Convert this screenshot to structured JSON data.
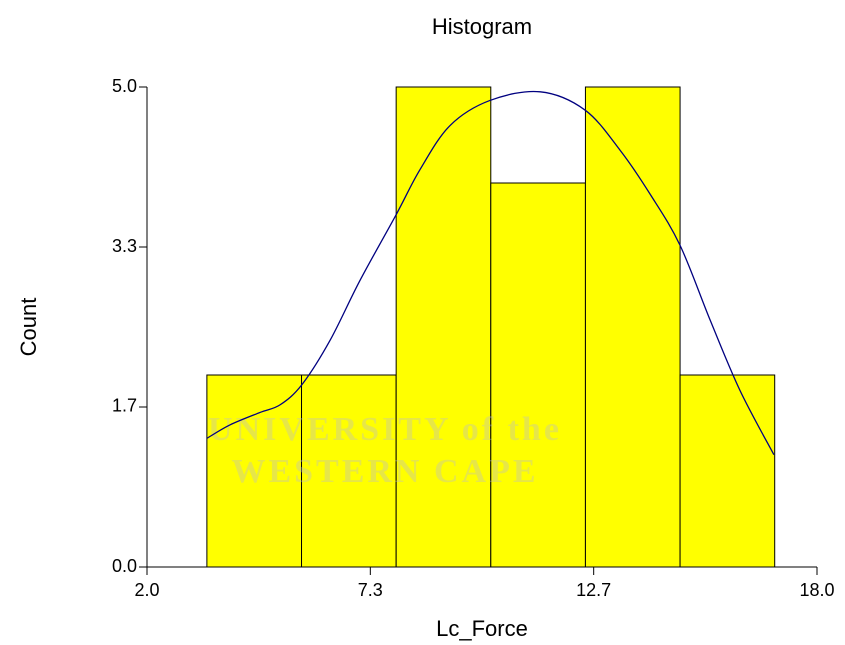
{
  "chart_data": {
    "type": "histogram",
    "title": "Histogram",
    "x_label": "Lc_Force",
    "y_label": "Count",
    "bins": [
      3.43,
      5.69,
      7.95,
      10.21,
      12.47,
      14.73,
      16.99
    ],
    "values": [
      2,
      2,
      5,
      4,
      5,
      2
    ],
    "color": "#ffff00",
    "edge_color": "#000000",
    "curve": {
      "color": "#000080",
      "x": [
        3.43,
        3.98,
        4.7,
        5.18,
        5.7,
        6.37,
        7.08,
        7.95,
        8.52,
        9.24,
        10.19,
        11.39,
        12.46,
        13.3,
        14.02,
        14.73,
        15.45,
        16.16,
        16.97
      ],
      "y": [
        1.34,
        1.48,
        1.61,
        1.69,
        1.9,
        2.36,
        2.98,
        3.67,
        4.14,
        4.6,
        4.86,
        4.95,
        4.76,
        4.34,
        3.88,
        3.35,
        2.57,
        1.84,
        1.17
      ]
    },
    "xlim": [
      2.0,
      18.0
    ],
    "xticks": [
      {
        "value": 2,
        "label": "2.0"
      },
      {
        "value": 7.333,
        "label": "7.3"
      },
      {
        "value": 12.667,
        "label": "12.7"
      },
      {
        "value": 18,
        "label": "18.0"
      }
    ],
    "ylim": [
      0,
      5
    ],
    "yticks": [
      {
        "value": 0,
        "label": "0.0"
      },
      {
        "value": 1.6667,
        "label": "1.7"
      },
      {
        "value": 3.3333,
        "label": "3.3"
      },
      {
        "value": 5,
        "label": "5.0"
      }
    ],
    "watermark": [
      "UNIVERSITY of the",
      "WESTERN CAPE"
    ]
  }
}
